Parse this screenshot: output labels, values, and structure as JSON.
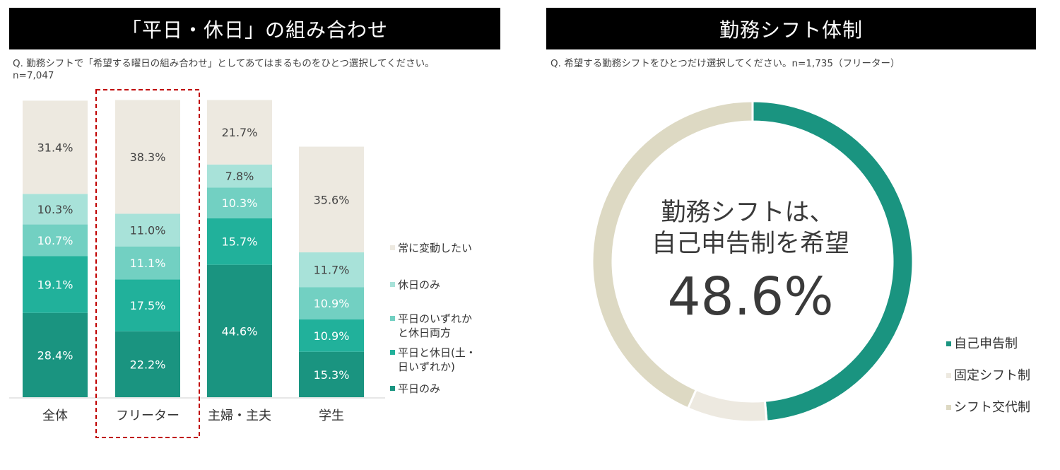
{
  "left_panel": {
    "title": "「平日・休日」の組み合わせ",
    "question": "Q. 勤務シフトで「希望する曜日の組み合わせ」としてあてはまるものをひとつ選択してください。",
    "n_label": "n=7,047"
  },
  "right_panel": {
    "title": "勤務シフト体制",
    "question": "Q. 希望する勤務シフトをひとつだけ選択してください。n=1,735（フリーター）",
    "center_line1": "勤務シフトは、",
    "center_line2": "自己申告制を希望",
    "center_value": "48.6%"
  },
  "chart_data": [
    {
      "type": "bar",
      "stacked": true,
      "percent": true,
      "categories": [
        "全体",
        "フリーター",
        "主婦・主夫",
        "学生"
      ],
      "highlight_category": "フリーター",
      "legend_position": "right",
      "series": [
        {
          "name": "平日のみ",
          "color": "#1a9480",
          "values": [
            28.4,
            22.2,
            44.6,
            15.3
          ],
          "labels": [
            "28.4%",
            "22.2%",
            "44.6%",
            "15.3%"
          ]
        },
        {
          "name": "平日と休日(土・日いずれか)",
          "color": "#21b19b",
          "values": [
            19.1,
            17.5,
            15.7,
            10.9
          ],
          "labels": [
            "19.1%",
            "17.5%",
            "15.7%",
            "10.9%"
          ]
        },
        {
          "name": "平日のいずれかと休日両方",
          "color": "#72d0c2",
          "values": [
            10.7,
            11.1,
            10.3,
            10.9
          ],
          "labels": [
            "10.7%",
            "11.1%",
            "10.3%",
            "10.9%"
          ]
        },
        {
          "name": "休日のみ",
          "color": "#a8e2d9",
          "values": [
            10.3,
            11.0,
            7.8,
            11.7
          ],
          "labels": [
            "10.3%",
            "11.0%",
            "7.8%",
            "11.7%"
          ]
        },
        {
          "name": "常に変動したい",
          "color": "#ede9e0",
          "values": [
            31.4,
            38.3,
            21.7,
            35.6
          ],
          "labels": [
            "31.4%",
            "38.3%",
            "21.7%",
            "35.6%"
          ]
        }
      ],
      "legend_entries": [
        {
          "lines": [
            "常に変動したい"
          ],
          "color": "#ede9e0"
        },
        {
          "lines": [
            "休日のみ"
          ],
          "color": "#a8e2d9"
        },
        {
          "lines": [
            "平日のいずれか",
            "と休日両方"
          ],
          "color": "#72d0c2"
        },
        {
          "lines": [
            "平日と休日(土・",
            "日いずれか)"
          ],
          "color": "#21b19b"
        },
        {
          "lines": [
            "平日のみ"
          ],
          "color": "#1a9480"
        }
      ]
    },
    {
      "type": "pie",
      "donut": true,
      "legend_position": "bottom-right",
      "slices": [
        {
          "name": "自己申告制",
          "value": 48.6,
          "color": "#1a9480"
        },
        {
          "name": "固定シフト制",
          "value": 8.0,
          "color": "#ede9e0"
        },
        {
          "name": "シフト交代制",
          "value": 43.4,
          "color": "#ddd9c3"
        }
      ]
    }
  ]
}
